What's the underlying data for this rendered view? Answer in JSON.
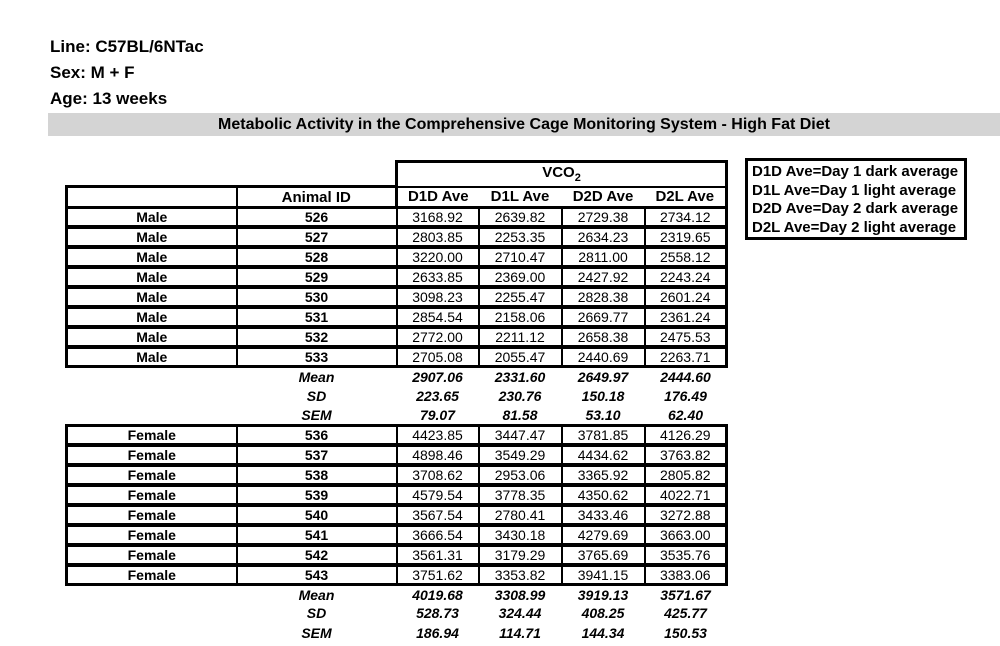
{
  "info": {
    "line": "Line: C57BL/6NTac",
    "sex": "Sex: M + F",
    "age": "Age: 13 weeks"
  },
  "banner": {
    "text": "Metabolic Activity in the Comprehensive Cage Monitoring System - High Fat Diet",
    "bg": "#d4d4d4"
  },
  "table": {
    "group_header": {
      "base": "VCO",
      "sub": "2"
    },
    "columns": [
      "Animal ID",
      "D1D Ave",
      "D1L Ave",
      "D2D Ave",
      "D2L Ave"
    ],
    "male": {
      "rows": [
        {
          "sex": "Male",
          "id": "526",
          "values": [
            "3168.92",
            "2639.82",
            "2729.38",
            "2734.12"
          ]
        },
        {
          "sex": "Male",
          "id": "527",
          "values": [
            "2803.85",
            "2253.35",
            "2634.23",
            "2319.65"
          ]
        },
        {
          "sex": "Male",
          "id": "528",
          "values": [
            "3220.00",
            "2710.47",
            "2811.00",
            "2558.12"
          ]
        },
        {
          "sex": "Male",
          "id": "529",
          "values": [
            "2633.85",
            "2369.00",
            "2427.92",
            "2243.24"
          ]
        },
        {
          "sex": "Male",
          "id": "530",
          "values": [
            "3098.23",
            "2255.47",
            "2828.38",
            "2601.24"
          ]
        },
        {
          "sex": "Male",
          "id": "531",
          "values": [
            "2854.54",
            "2158.06",
            "2669.77",
            "2361.24"
          ]
        },
        {
          "sex": "Male",
          "id": "532",
          "values": [
            "2772.00",
            "2211.12",
            "2658.38",
            "2475.53"
          ]
        },
        {
          "sex": "Male",
          "id": "533",
          "values": [
            "2705.08",
            "2055.47",
            "2440.69",
            "2263.71"
          ]
        }
      ],
      "stats": [
        {
          "label": "Mean",
          "values": [
            "2907.06",
            "2331.60",
            "2649.97",
            "2444.60"
          ]
        },
        {
          "label": "SD",
          "values": [
            "223.65",
            "230.76",
            "150.18",
            "176.49"
          ]
        },
        {
          "label": "SEM",
          "values": [
            "79.07",
            "81.58",
            "53.10",
            "62.40"
          ]
        }
      ]
    },
    "female": {
      "rows": [
        {
          "sex": "Female",
          "id": "536",
          "values": [
            "4423.85",
            "3447.47",
            "3781.85",
            "4126.29"
          ]
        },
        {
          "sex": "Female",
          "id": "537",
          "values": [
            "4898.46",
            "3549.29",
            "4434.62",
            "3763.82"
          ]
        },
        {
          "sex": "Female",
          "id": "538",
          "values": [
            "3708.62",
            "2953.06",
            "3365.92",
            "2805.82"
          ]
        },
        {
          "sex": "Female",
          "id": "539",
          "values": [
            "4579.54",
            "3778.35",
            "4350.62",
            "4022.71"
          ]
        },
        {
          "sex": "Female",
          "id": "540",
          "values": [
            "3567.54",
            "2780.41",
            "3433.46",
            "3272.88"
          ]
        },
        {
          "sex": "Female",
          "id": "541",
          "values": [
            "3666.54",
            "3430.18",
            "4279.69",
            "3663.00"
          ]
        },
        {
          "sex": "Female",
          "id": "542",
          "values": [
            "3561.31",
            "3179.29",
            "3765.69",
            "3535.76"
          ]
        },
        {
          "sex": "Female",
          "id": "543",
          "values": [
            "3751.62",
            "3353.82",
            "3941.15",
            "3383.06"
          ]
        }
      ],
      "stats": [
        {
          "label": "Mean",
          "values": [
            "4019.68",
            "3308.99",
            "3919.13",
            "3571.67"
          ]
        },
        {
          "label": "SD",
          "values": [
            "528.73",
            "324.44",
            "408.25",
            "425.77"
          ]
        },
        {
          "label": "SEM",
          "values": [
            "186.94",
            "114.71",
            "144.34",
            "150.53"
          ]
        }
      ]
    }
  },
  "legend": {
    "items": [
      "D1D Ave=Day 1 dark average",
      "D1L Ave=Day 1 light average",
      "D2D Ave=Day 2 dark average",
      "D2L Ave=Day 2 light average"
    ]
  }
}
